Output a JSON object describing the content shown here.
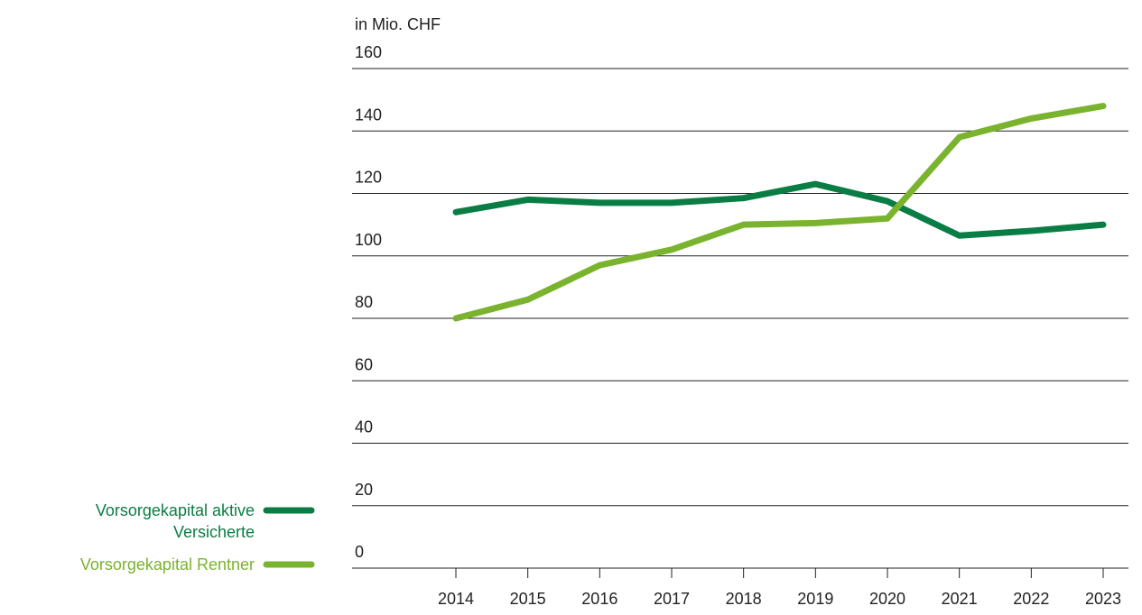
{
  "chart_data": {
    "type": "line",
    "y_label": "in Mio. CHF",
    "categories": [
      "2014",
      "2015",
      "2016",
      "2017",
      "2018",
      "2019",
      "2020",
      "2021",
      "2022",
      "2023"
    ],
    "series": [
      {
        "name": "Vorsorgekapital aktive Versicherte",
        "color": "#0a7d45",
        "values": [
          114,
          118,
          117,
          117,
          118.5,
          123,
          117.5,
          106.5,
          108,
          110
        ]
      },
      {
        "name": "Vorsorgekapital Rentner",
        "color": "#7ab32e",
        "values": [
          80,
          86,
          97,
          102,
          110,
          110.5,
          112,
          138,
          144,
          148
        ]
      }
    ],
    "ylim": [
      0,
      160
    ],
    "yticks": [
      0,
      20,
      40,
      60,
      80,
      100,
      120,
      140,
      160
    ],
    "grid": true
  }
}
